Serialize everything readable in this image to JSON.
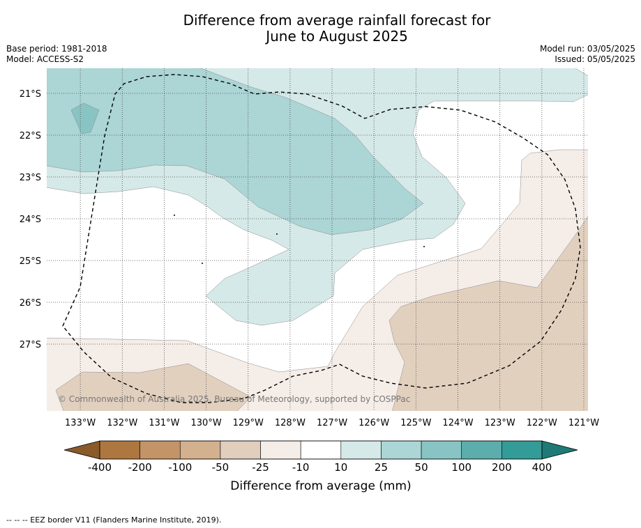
{
  "title_lines": [
    "Difference from average rainfall forecast for",
    "June to August 2025"
  ],
  "meta_left": [
    "Base period: 1981-2018",
    "Model: ACCESS-S2"
  ],
  "meta_right": [
    "Model run: 03/05/2025",
    "Issued: 05/05/2025"
  ],
  "copyright": "© Commonwealth of Australia 2025, Bureau of Meteorology, supported by COSPPac",
  "footnote": "--  --  -- EEZ border V11 (Flanders Marine Institute, 2019).",
  "map": {
    "lon_range": [
      -133.8,
      -120.9
    ],
    "lat_range": [
      -28.6,
      -20.4
    ],
    "lon_ticks": [
      -133,
      -132,
      -131,
      -130,
      -129,
      -128,
      -127,
      -126,
      -125,
      -124,
      -123,
      -122,
      -121
    ],
    "lon_tick_labels": [
      "133°W",
      "132°W",
      "131°W",
      "130°W",
      "129°W",
      "128°W",
      "127°W",
      "126°W",
      "125°W",
      "124°W",
      "123°W",
      "122°W",
      "121°W"
    ],
    "lat_ticks": [
      -21,
      -22,
      -23,
      -24,
      -25,
      -26,
      -27
    ],
    "lat_tick_labels": [
      "21°S",
      "22°S",
      "23°S",
      "24°S",
      "25°S",
      "26°S",
      "27°S"
    ]
  },
  "colorbar": {
    "title": "Difference from average (mm)",
    "labels": [
      "-400",
      "-200",
      "-100",
      "-50",
      "-25",
      "-10",
      "10",
      "25",
      "50",
      "100",
      "200",
      "400"
    ],
    "colors": [
      "#ae773f",
      "#c29467",
      "#d3b08e",
      "#e2cebc",
      "#f5ede8",
      "#ffffff",
      "#d5e9e8",
      "#acd5d5",
      "#89c4c4",
      "#5dadad",
      "#339b98"
    ],
    "low_extension_color": "#8a5a2b",
    "high_extension_color": "#1f7a76"
  },
  "palette": {
    "dry_25": "#e2d0bf",
    "dry_10": "#f5ede8",
    "wet_10": "#d5e9e8",
    "wet_25": "#acd5d5",
    "wet_50": "#89c4c4"
  }
}
